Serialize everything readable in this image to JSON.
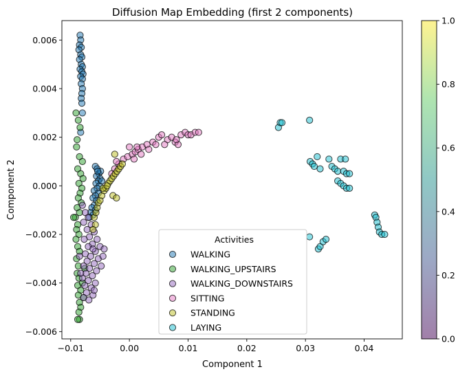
{
  "chart_data": {
    "type": "scatter",
    "title": "Diffusion Map Embedding (first 2 components)",
    "xlabel": "Component 1",
    "ylabel": "Component 2",
    "xlim": [
      -0.0115,
      0.0465
    ],
    "ylim": [
      -0.0063,
      0.0068
    ],
    "x_ticks": [
      -0.01,
      0.0,
      0.01,
      0.02,
      0.03,
      0.04
    ],
    "x_tick_labels": [
      "−0.01",
      "0.00",
      "0.01",
      "0.02",
      "0.03",
      "0.04"
    ],
    "y_ticks": [
      -0.006,
      -0.004,
      -0.002,
      0.0,
      0.002,
      0.004,
      0.006
    ],
    "y_tick_labels": [
      "−0.006",
      "−0.004",
      "−0.002",
      "0.000",
      "0.002",
      "0.004",
      "0.006"
    ],
    "grid": false,
    "legend": {
      "title": "Activities",
      "placement": "lower-center"
    },
    "colorbar": {
      "range": [
        0.0,
        1.0
      ],
      "ticks": [
        0.0,
        0.2,
        0.4,
        0.6,
        0.8,
        1.0
      ],
      "tick_labels": [
        "0.0",
        "0.2",
        "0.4",
        "0.6",
        "0.8",
        "1.0"
      ],
      "colors": [
        "#440154",
        "#3b528b",
        "#21918c",
        "#5ec962",
        "#fde725"
      ]
    },
    "series": [
      {
        "name": "WALKING",
        "color": "#1f77b4",
        "points": [
          [
            -0.0084,
            0.0062
          ],
          [
            -0.0083,
            0.006
          ],
          [
            -0.0085,
            0.0058
          ],
          [
            -0.0082,
            0.0057
          ],
          [
            -0.0086,
            0.0056
          ],
          [
            -0.0083,
            0.0054
          ],
          [
            -0.0081,
            0.0053
          ],
          [
            -0.0085,
            0.0052
          ],
          [
            -0.0082,
            0.005
          ],
          [
            -0.008,
            0.0049
          ],
          [
            -0.0084,
            0.0048
          ],
          [
            -0.0081,
            0.0047
          ],
          [
            -0.0079,
            0.0046
          ],
          [
            -0.0083,
            0.0045
          ],
          [
            -0.008,
            0.0044
          ],
          [
            -0.0082,
            0.0042
          ],
          [
            -0.008,
            0.004
          ],
          [
            -0.0081,
            0.0038
          ],
          [
            -0.0082,
            0.0036
          ],
          [
            -0.0081,
            0.0034
          ],
          [
            -0.008,
            0.003
          ],
          [
            -0.0083,
            0.0022
          ],
          [
            -0.0058,
            0.0008
          ],
          [
            -0.0055,
            0.0007
          ],
          [
            -0.0052,
            0.0005
          ],
          [
            -0.0056,
            0.0004
          ],
          [
            -0.005,
            0.0003
          ],
          [
            -0.0053,
            0.0002
          ],
          [
            -0.0057,
            0.0001
          ],
          [
            -0.0051,
            0.0
          ],
          [
            -0.0055,
            -0.0001
          ],
          [
            -0.006,
            -0.0002
          ],
          [
            -0.0053,
            -0.0003
          ],
          [
            -0.0058,
            -0.0004
          ],
          [
            -0.0062,
            -0.0005
          ],
          [
            -0.0056,
            -0.0006
          ],
          [
            -0.006,
            -0.0008
          ],
          [
            -0.0064,
            -0.0009
          ],
          [
            -0.0058,
            -0.001
          ],
          [
            -0.0066,
            -0.0011
          ],
          [
            -0.0062,
            -0.0012
          ],
          [
            -0.0068,
            -0.0013
          ],
          [
            -0.0047,
            0.0002
          ],
          [
            -0.0049,
            0.0006
          ],
          [
            -0.0054,
            0.0006
          ]
        ]
      },
      {
        "name": "WALKING_UPSTAIRS",
        "color": "#2ca02c",
        "points": [
          [
            -0.0091,
            0.003
          ],
          [
            -0.0087,
            0.0027
          ],
          [
            -0.0084,
            0.0024
          ],
          [
            -0.0089,
            0.0019
          ],
          [
            -0.009,
            0.0016
          ],
          [
            -0.0085,
            0.0012
          ],
          [
            -0.008,
            0.001
          ],
          [
            -0.0088,
            0.0007
          ],
          [
            -0.0083,
            0.0005
          ],
          [
            -0.0079,
            0.0003
          ],
          [
            -0.0086,
            0.0001
          ],
          [
            -0.0081,
            -0.0001
          ],
          [
            -0.0084,
            -0.0003
          ],
          [
            -0.0087,
            -0.0005
          ],
          [
            -0.0082,
            -0.0007
          ],
          [
            -0.0089,
            -0.0009
          ],
          [
            -0.0085,
            -0.0011
          ],
          [
            -0.0092,
            -0.0013
          ],
          [
            -0.0095,
            -0.0013
          ],
          [
            -0.0088,
            -0.0016
          ],
          [
            -0.009,
            -0.0018
          ],
          [
            -0.0086,
            -0.002
          ],
          [
            -0.0091,
            -0.0022
          ],
          [
            -0.0088,
            -0.0025
          ],
          [
            -0.0085,
            -0.0027
          ],
          [
            -0.009,
            -0.003
          ],
          [
            -0.0087,
            -0.0033
          ],
          [
            -0.0089,
            -0.0036
          ],
          [
            -0.0086,
            -0.0038
          ],
          [
            -0.0088,
            -0.0041
          ],
          [
            -0.0083,
            -0.0043
          ],
          [
            -0.0087,
            -0.0045
          ],
          [
            -0.0085,
            -0.0048
          ],
          [
            -0.0083,
            -0.005
          ],
          [
            -0.0086,
            -0.0052
          ],
          [
            -0.0085,
            -0.0055
          ],
          [
            -0.0088,
            -0.0055
          ],
          [
            -0.0078,
            -0.0046
          ],
          [
            -0.008,
            -0.004
          ],
          [
            -0.0076,
            -0.0034
          ]
        ]
      },
      {
        "name": "WALKING_DOWNSTAIRS",
        "color": "#9467bd",
        "points": [
          [
            -0.008,
            -0.0008
          ],
          [
            -0.0075,
            -0.0011
          ],
          [
            -0.007,
            -0.0013
          ],
          [
            -0.0078,
            -0.0015
          ],
          [
            -0.0065,
            -0.0016
          ],
          [
            -0.0072,
            -0.0018
          ],
          [
            -0.006,
            -0.0019
          ],
          [
            -0.0068,
            -0.0021
          ],
          [
            -0.0077,
            -0.0022
          ],
          [
            -0.0055,
            -0.0022
          ],
          [
            -0.0063,
            -0.0024
          ],
          [
            -0.007,
            -0.0025
          ],
          [
            -0.005,
            -0.0025
          ],
          [
            -0.0058,
            -0.0027
          ],
          [
            -0.0075,
            -0.0028
          ],
          [
            -0.0066,
            -0.0029
          ],
          [
            -0.0053,
            -0.003
          ],
          [
            -0.0072,
            -0.0031
          ],
          [
            -0.006,
            -0.0032
          ],
          [
            -0.0078,
            -0.0033
          ],
          [
            -0.0068,
            -0.0034
          ],
          [
            -0.0056,
            -0.0035
          ],
          [
            -0.0074,
            -0.0036
          ],
          [
            -0.0063,
            -0.0037
          ],
          [
            -0.008,
            -0.0038
          ],
          [
            -0.007,
            -0.0039
          ],
          [
            -0.0058,
            -0.004
          ],
          [
            -0.0076,
            -0.0041
          ],
          [
            -0.0065,
            -0.0042
          ],
          [
            -0.0073,
            -0.0044
          ],
          [
            -0.0062,
            -0.0045
          ],
          [
            -0.0078,
            -0.0046
          ],
          [
            -0.0069,
            -0.0047
          ],
          [
            -0.0045,
            -0.0029
          ],
          [
            -0.0048,
            -0.0033
          ],
          [
            -0.0043,
            -0.0026
          ],
          [
            -0.0062,
            -0.0026
          ],
          [
            -0.0085,
            -0.0029
          ],
          [
            -0.0083,
            -0.0036
          ],
          [
            -0.006,
            -0.0043
          ]
        ]
      },
      {
        "name": "SITTING",
        "color": "#e377c2",
        "points": [
          [
            -0.003,
            0.0005
          ],
          [
            -0.0025,
            0.0007
          ],
          [
            -0.0018,
            0.0009
          ],
          [
            -0.001,
            0.0011
          ],
          [
            -0.0003,
            0.0012
          ],
          [
            0.0005,
            0.0013
          ],
          [
            0.001,
            0.0014
          ],
          [
            0.0015,
            0.0015
          ],
          [
            0.0022,
            0.0016
          ],
          [
            0.003,
            0.0017
          ],
          [
            0.004,
            0.0018
          ],
          [
            0.005,
            0.002
          ],
          [
            0.0055,
            0.0021
          ],
          [
            0.0065,
            0.0019
          ],
          [
            0.0072,
            0.002
          ],
          [
            0.0078,
            0.0018
          ],
          [
            0.0083,
            0.0017
          ],
          [
            0.0088,
            0.0021
          ],
          [
            0.0095,
            0.0022
          ],
          [
            0.01,
            0.0021
          ],
          [
            0.0105,
            0.0021
          ],
          [
            0.0112,
            0.0022
          ],
          [
            0.0118,
            0.0022
          ],
          [
            0.0,
            0.0016
          ],
          [
            0.0013,
            0.0016
          ],
          [
            0.002,
            0.0013
          ],
          [
            0.0033,
            0.0015
          ],
          [
            0.0045,
            0.0017
          ],
          [
            0.006,
            0.0017
          ],
          [
            0.008,
            0.0019
          ],
          [
            -0.0022,
            0.001
          ],
          [
            0.0008,
            0.0011
          ]
        ]
      },
      {
        "name": "STANDING",
        "color": "#bcbd22",
        "points": [
          [
            -0.006,
            -0.0013
          ],
          [
            -0.0057,
            -0.0011
          ],
          [
            -0.0055,
            -0.0009
          ],
          [
            -0.0053,
            -0.0007
          ],
          [
            -0.005,
            -0.0006
          ],
          [
            -0.0047,
            -0.0004
          ],
          [
            -0.0043,
            -0.0002
          ],
          [
            -0.004,
            -0.0001
          ],
          [
            -0.0036,
            0.0001
          ],
          [
            -0.0033,
            0.0002
          ],
          [
            -0.003,
            0.0003
          ],
          [
            -0.0027,
            0.0004
          ],
          [
            -0.0024,
            0.0005
          ],
          [
            -0.0021,
            0.0006
          ],
          [
            -0.0018,
            0.0007
          ],
          [
            -0.0015,
            0.0008
          ],
          [
            -0.0012,
            0.0009
          ],
          [
            -0.0025,
            0.0013
          ],
          [
            -0.0028,
            -0.0004
          ],
          [
            -0.0022,
            -0.0005
          ],
          [
            -0.0058,
            -0.0016
          ],
          [
            -0.0062,
            -0.0018
          ],
          [
            -0.0045,
            -0.0001
          ],
          [
            -0.0038,
            0.0
          ]
        ]
      },
      {
        "name": "LAYING",
        "color": "#17becf",
        "points": [
          [
            0.0254,
            0.0024
          ],
          [
            0.0257,
            0.0026
          ],
          [
            0.026,
            0.0026
          ],
          [
            0.0307,
            0.0027
          ],
          [
            0.0308,
            0.001
          ],
          [
            0.0312,
            0.0009
          ],
          [
            0.0315,
            0.0008
          ],
          [
            0.032,
            0.0012
          ],
          [
            0.0325,
            0.0007
          ],
          [
            0.034,
            0.0011
          ],
          [
            0.0345,
            0.0008
          ],
          [
            0.035,
            0.0007
          ],
          [
            0.0355,
            0.0006
          ],
          [
            0.036,
            0.0011
          ],
          [
            0.0365,
            0.0006
          ],
          [
            0.037,
            0.0005
          ],
          [
            0.0375,
            0.0005
          ],
          [
            0.0355,
            0.0002
          ],
          [
            0.036,
            0.0001
          ],
          [
            0.0365,
            0.0
          ],
          [
            0.037,
            -0.0001
          ],
          [
            0.0375,
            -0.0001
          ],
          [
            0.0418,
            -0.0012
          ],
          [
            0.042,
            -0.0013
          ],
          [
            0.0422,
            -0.0015
          ],
          [
            0.0424,
            -0.0017
          ],
          [
            0.0426,
            -0.0019
          ],
          [
            0.043,
            -0.002
          ],
          [
            0.0435,
            -0.002
          ],
          [
            0.0307,
            -0.0021
          ],
          [
            0.0322,
            -0.0026
          ],
          [
            0.0325,
            -0.0025
          ],
          [
            0.033,
            -0.0023
          ],
          [
            0.0335,
            -0.0022
          ],
          [
            0.0368,
            0.0011
          ]
        ]
      }
    ]
  }
}
